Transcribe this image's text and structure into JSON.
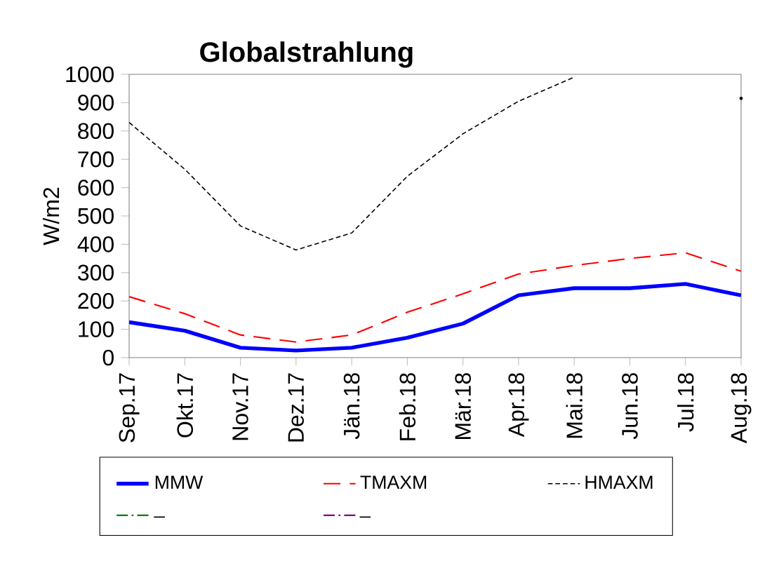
{
  "chart_data": {
    "type": "line",
    "title": "Globalstrahlung",
    "ylabel": "W/m2",
    "categories": [
      "Sep.17",
      "Okt.17",
      "Nov.17",
      "Dez.17",
      "Jän.18",
      "Feb.18",
      "Mär.18",
      "Apr.18",
      "Mai.18",
      "Jun.18",
      "Jul.18",
      "Aug.18"
    ],
    "series": [
      {
        "name": "MMW",
        "color": "#0000ff",
        "line_style": "solid",
        "values": [
          125,
          95,
          35,
          25,
          35,
          70,
          120,
          220,
          245,
          245,
          260,
          220
        ]
      },
      {
        "name": "TMAXM",
        "color": "#ff0000",
        "line_style": "dashed",
        "values": [
          215,
          155,
          80,
          55,
          80,
          160,
          225,
          295,
          325,
          350,
          370,
          305
        ]
      },
      {
        "name": "HMAXM",
        "color": "#000000",
        "line_style": "dotted",
        "values": [
          830,
          665,
          465,
          380,
          440,
          640,
          790,
          905,
          990,
          null,
          null,
          915
        ]
      },
      {
        "name": "_",
        "color": "#008000",
        "line_style": "dashdot",
        "values": [
          null,
          null,
          null,
          null,
          null,
          null,
          null,
          null,
          null,
          null,
          null,
          null
        ]
      },
      {
        "name": "_",
        "color": "#800080",
        "line_style": "dashdot",
        "values": [
          null,
          null,
          null,
          null,
          null,
          null,
          null,
          null,
          null,
          null,
          null,
          null
        ]
      }
    ],
    "ylim": [
      0,
      1000
    ],
    "yticks": [
      0,
      100,
      200,
      300,
      400,
      500,
      600,
      700,
      800,
      900,
      1000
    ],
    "grid": false,
    "legend": "bottom",
    "marker": "none"
  }
}
